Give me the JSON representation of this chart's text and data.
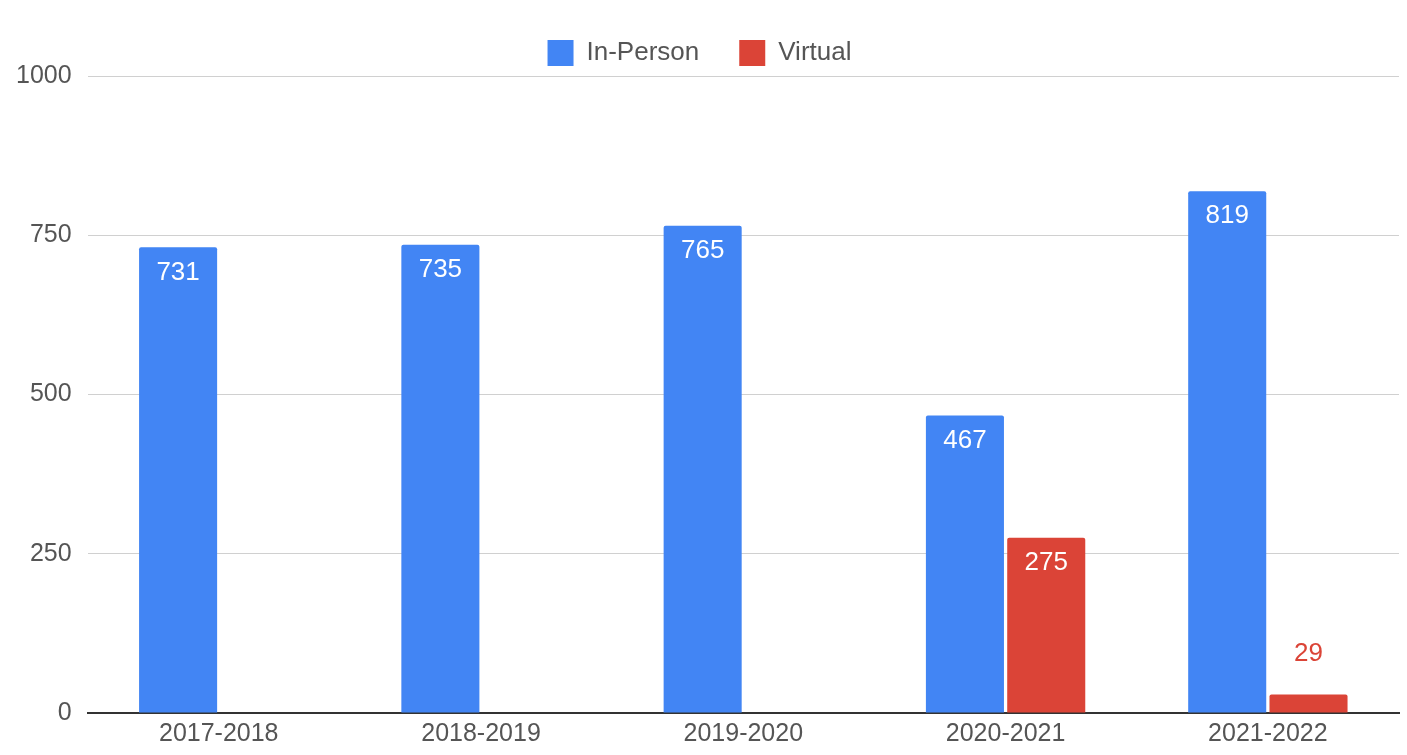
{
  "chart_data": {
    "type": "bar",
    "categories": [
      "2017-2018",
      "2018-2019",
      "2019-2020",
      "2020-2021",
      "2021-2022"
    ],
    "series": [
      {
        "name": "In-Person",
        "color": "#4285f4",
        "values": [
          731,
          735,
          765,
          467,
          819
        ]
      },
      {
        "name": "Virtual",
        "color": "#db4437",
        "values": [
          null,
          null,
          null,
          275,
          29
        ]
      }
    ],
    "ylim": [
      0,
      1000
    ],
    "yticks": [
      0,
      250,
      500,
      750,
      1000
    ],
    "grid": "y",
    "legend": "top",
    "data_labels": true
  }
}
